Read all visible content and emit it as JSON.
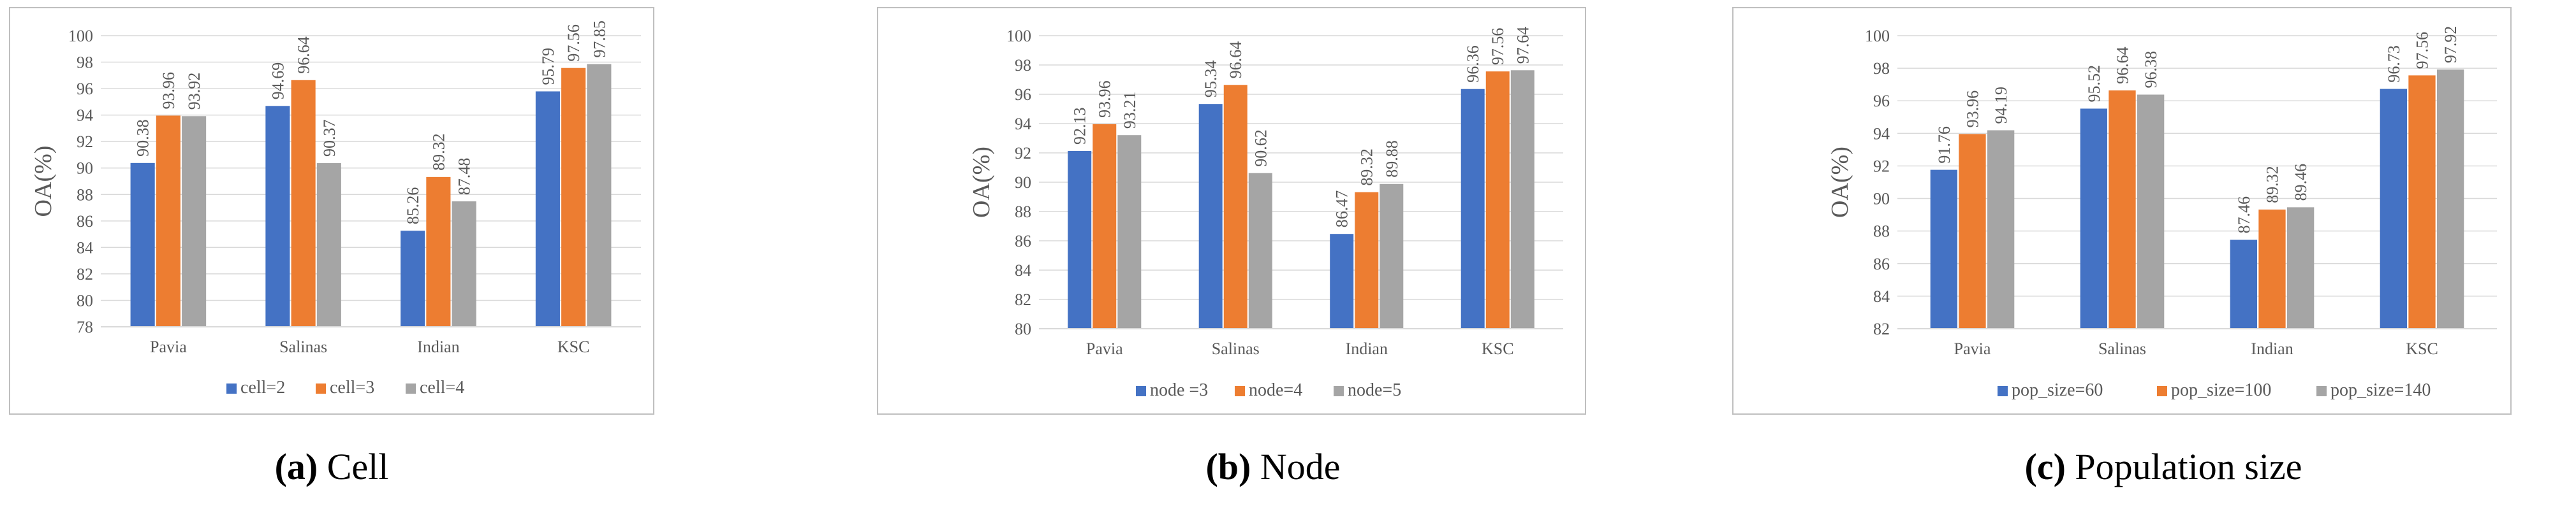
{
  "colors": {
    "series1": "#4472C4",
    "series2": "#ED7D31",
    "series3": "#A5A5A5",
    "grid": "#D9D9D9",
    "border": "#BFBFBF",
    "text": "#595959"
  },
  "panels": [
    {
      "label": "(a)",
      "caption": "Cell"
    },
    {
      "label": "(b)",
      "caption": "Node"
    },
    {
      "label": "(c)",
      "caption": "Population size"
    }
  ],
  "chart_data": [
    {
      "type": "bar",
      "ylabel": "OA(%)",
      "ylim": [
        78,
        100
      ],
      "ystep": 2,
      "categories": [
        "Pavia",
        "Salinas",
        "Indian",
        "KSC"
      ],
      "series": [
        {
          "name": "cell=2",
          "values": [
            90.38,
            94.69,
            85.26,
            95.79
          ]
        },
        {
          "name": "cell=3",
          "values": [
            93.96,
            96.64,
            89.32,
            97.56
          ]
        },
        {
          "name": "cell=4",
          "values": [
            93.92,
            90.37,
            87.48,
            97.85
          ]
        }
      ]
    },
    {
      "type": "bar",
      "ylabel": "OA(%)",
      "ylim": [
        80,
        100
      ],
      "ystep": 2,
      "categories": [
        "Pavia",
        "Salinas",
        "Indian",
        "KSC"
      ],
      "series": [
        {
          "name": "node =3",
          "values": [
            92.13,
            95.34,
            86.47,
            96.36
          ]
        },
        {
          "name": "node=4",
          "values": [
            93.96,
            96.64,
            89.32,
            97.56
          ]
        },
        {
          "name": "node=5",
          "values": [
            93.21,
            90.62,
            89.88,
            97.64
          ]
        }
      ]
    },
    {
      "type": "bar",
      "ylabel": "OA(%)",
      "ylim": [
        82,
        100
      ],
      "ystep": 2,
      "categories": [
        "Pavia",
        "Salinas",
        "Indian",
        "KSC"
      ],
      "series": [
        {
          "name": "pop_size=60",
          "values": [
            91.76,
            95.52,
            87.46,
            96.73
          ]
        },
        {
          "name": "pop_size=100",
          "values": [
            93.96,
            96.64,
            89.32,
            97.56
          ]
        },
        {
          "name": "pop_size=140",
          "values": [
            94.19,
            96.38,
            89.46,
            97.92
          ]
        }
      ]
    }
  ]
}
